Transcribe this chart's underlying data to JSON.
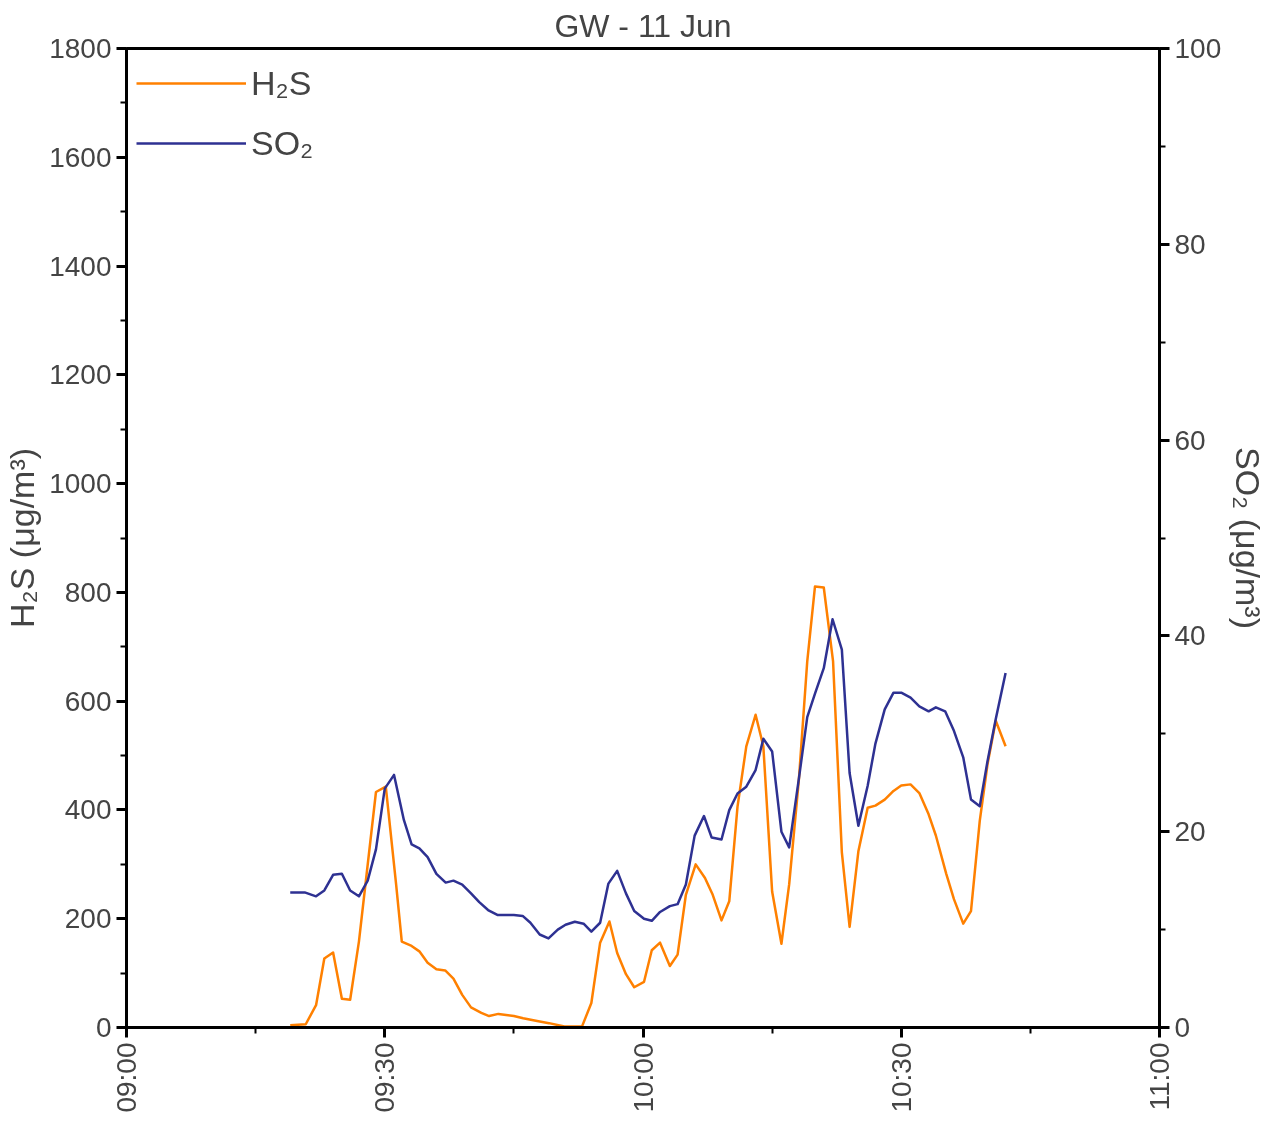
{
  "chart_data": {
    "type": "line",
    "title": "GW - 11 Jun",
    "ylabel": "H₂S (μg/m³)",
    "y2label": "SO₂ (μg/m³)",
    "xlim": [
      9,
      11
    ],
    "ylim": [
      0,
      1800
    ],
    "y2lim": [
      0,
      100
    ],
    "xticks": [
      {
        "value": 9,
        "label": "09:00"
      },
      {
        "value": 9.25,
        "label": null
      },
      {
        "value": 9.5,
        "label": "09:30"
      },
      {
        "value": 9.75,
        "label": null
      },
      {
        "value": 10,
        "label": "10:00"
      },
      {
        "value": 10.25,
        "label": null
      },
      {
        "value": 10.5,
        "label": "10:30"
      },
      {
        "value": 10.75,
        "label": null
      },
      {
        "value": 11,
        "label": "11:00"
      }
    ],
    "yticks": [
      0,
      {
        "value": 100,
        "label": null
      },
      200,
      {
        "value": 300,
        "label": null
      },
      400,
      {
        "value": 500,
        "label": null
      },
      600,
      {
        "value": 700,
        "label": null
      },
      800,
      {
        "value": 900,
        "label": null
      },
      1000,
      {
        "value": 1100,
        "label": null
      },
      1200,
      {
        "value": 1300,
        "label": null
      },
      1400,
      {
        "value": 1500,
        "label": null
      },
      1600,
      {
        "value": 1700,
        "label": null
      },
      1800
    ],
    "y2ticks": [
      0,
      {
        "value": 10,
        "label": null
      },
      20,
      {
        "value": 30,
        "label": null
      },
      40,
      {
        "value": 50,
        "label": null
      },
      60,
      {
        "value": 70,
        "label": null
      },
      80,
      {
        "value": 90,
        "label": null
      },
      100
    ],
    "grid": false,
    "legend": "top left",
    "series": [
      {
        "name": "H₂S",
        "color": "#ff8000",
        "x": [
          9.317,
          9.347,
          9.367,
          9.383,
          9.4,
          9.417,
          9.433,
          9.45,
          9.483,
          9.502,
          9.522,
          9.533,
          9.552,
          9.567,
          9.583,
          9.6,
          9.617,
          9.633,
          9.65,
          9.667,
          9.687,
          9.702,
          9.72,
          9.735,
          9.75,
          9.768,
          9.795,
          9.818,
          9.848,
          9.882,
          9.9,
          9.917,
          9.935,
          9.95,
          9.967,
          9.983,
          10.002,
          10.017,
          10.033,
          10.052,
          10.067,
          10.083,
          10.102,
          10.12,
          10.135,
          10.152,
          10.167,
          10.183,
          10.2,
          10.218,
          10.233,
          10.25,
          10.268,
          10.283,
          10.302,
          10.318,
          10.333,
          10.35,
          10.368,
          10.385,
          10.4,
          10.417,
          10.435,
          10.45,
          10.468,
          10.485,
          10.5,
          10.518,
          10.535,
          10.553,
          10.567,
          10.587,
          10.602,
          10.62,
          10.635,
          10.652,
          10.667,
          10.683,
          10.702
        ],
        "values": [
          4,
          6,
          41,
          127,
          138,
          53,
          51,
          158,
          433,
          443,
          263,
          158,
          150,
          140,
          119,
          107,
          105,
          90,
          60,
          37,
          27,
          21,
          25,
          23,
          21,
          17,
          12,
          8,
          2,
          2,
          45,
          156,
          195,
          137,
          98,
          74,
          84,
          142,
          156,
          113,
          134,
          244,
          300,
          275,
          244,
          197,
          232,
          406,
          517,
          575,
          517,
          250,
          154,
          263,
          458,
          673,
          811,
          809,
          673,
          322,
          185,
          324,
          404,
          408,
          419,
          435,
          445,
          447,
          431,
          392,
          353,
          283,
          236,
          191,
          214,
          380,
          484,
          564,
          517
        ]
      },
      {
        "name": "SO₂",
        "color": "#2e3192",
        "axis": "y2",
        "x": [
          9.317,
          9.345,
          9.367,
          9.383,
          9.4,
          9.417,
          9.433,
          9.45,
          9.467,
          9.483,
          9.5,
          9.518,
          9.537,
          9.552,
          9.567,
          9.583,
          9.6,
          9.618,
          9.633,
          9.65,
          9.667,
          9.683,
          9.7,
          9.718,
          9.75,
          9.767,
          9.782,
          9.8,
          9.817,
          9.835,
          9.85,
          9.868,
          9.885,
          9.9,
          9.917,
          9.933,
          9.95,
          9.967,
          9.983,
          10.002,
          10.017,
          10.033,
          10.052,
          10.067,
          10.083,
          10.1,
          10.118,
          10.133,
          10.152,
          10.167,
          10.183,
          10.2,
          10.218,
          10.233,
          10.25,
          10.268,
          10.283,
          10.302,
          10.318,
          10.333,
          10.35,
          10.367,
          10.385,
          10.4,
          10.417,
          10.435,
          10.45,
          10.468,
          10.485,
          10.5,
          10.518,
          10.535,
          10.553,
          10.567,
          10.585,
          10.602,
          10.62,
          10.635,
          10.652,
          10.667,
          10.683,
          10.702
        ],
        "values": [
          13.8,
          13.8,
          13.4,
          14.0,
          15.6,
          15.7,
          14.0,
          13.4,
          15.0,
          18.2,
          24.4,
          25.8,
          21.2,
          18.7,
          18.3,
          17.4,
          15.7,
          14.8,
          15.0,
          14.6,
          13.7,
          12.8,
          12.0,
          11.5,
          11.5,
          11.4,
          10.7,
          9.5,
          9.1,
          10.0,
          10.5,
          10.8,
          10.6,
          9.8,
          10.7,
          14.7,
          16.0,
          13.7,
          11.9,
          11.1,
          10.9,
          11.8,
          12.4,
          12.6,
          14.6,
          19.6,
          21.6,
          19.4,
          19.2,
          22.2,
          23.9,
          24.6,
          26.3,
          29.5,
          28.2,
          20.0,
          18.4,
          25.5,
          31.7,
          34.1,
          36.7,
          41.7,
          38.6,
          26.0,
          20.6,
          24.7,
          29.0,
          32.5,
          34.2,
          34.2,
          33.7,
          32.8,
          32.3,
          32.7,
          32.3,
          30.3,
          27.6,
          23.3,
          22.6,
          27.2,
          31.5,
          36.2
        ]
      }
    ]
  }
}
